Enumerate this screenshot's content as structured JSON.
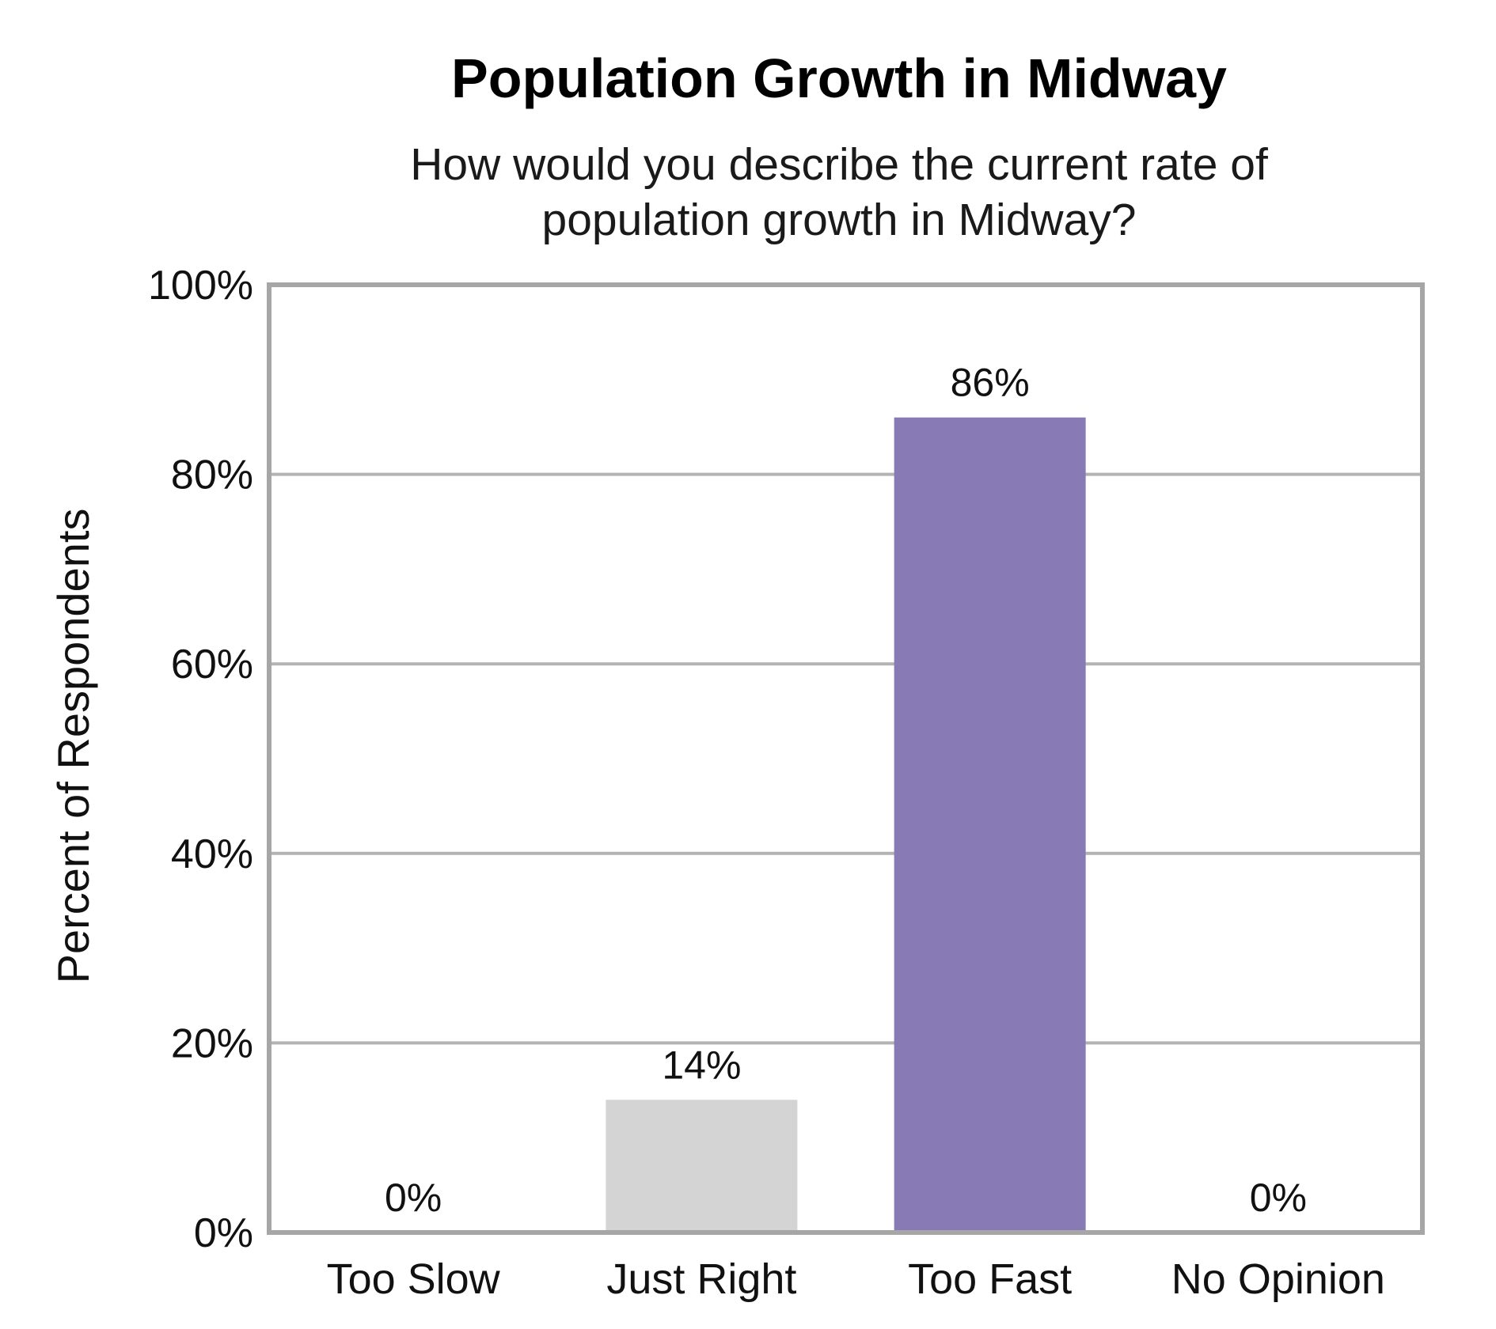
{
  "chart_data": {
    "type": "bar",
    "title": "Population Growth in Midway",
    "subtitle_lines": [
      "How would you describe the current rate of",
      "population growth in Midway?"
    ],
    "xlabel": "",
    "ylabel": "Percent of Respondents",
    "ylim": [
      0,
      100
    ],
    "yticks": [
      0,
      20,
      40,
      60,
      80,
      100
    ],
    "ytick_labels": [
      "0%",
      "20%",
      "40%",
      "60%",
      "80%",
      "100%"
    ],
    "categories": [
      "Too Slow",
      "Just Right",
      "Too Fast",
      "No Opinion"
    ],
    "values": [
      0,
      14,
      86,
      0
    ],
    "data_labels": [
      "0%",
      "14%",
      "86%",
      "0%"
    ],
    "bar_colors": [
      "#d4d4d4",
      "#d4d4d4",
      "#887bb5",
      "#d4d4d4"
    ],
    "grid": true,
    "grid_color": "#b3b3b3",
    "frame_color": "#a6a6a6",
    "legend": "none"
  }
}
